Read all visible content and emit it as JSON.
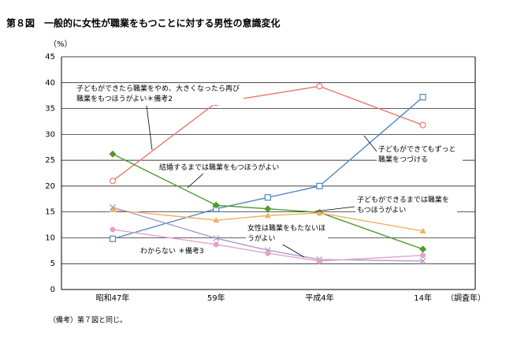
{
  "chart_data": {
    "type": "line",
    "title": "第８図　一般的に女性が職業をもつことに対する男性の意識変化",
    "y_label": "（%）",
    "x_label": "（調査年）",
    "note": "（備考）第７図と同じ。",
    "categories": [
      "昭和47年",
      null,
      "59年",
      null,
      "平成4年",
      null,
      "14年"
    ],
    "ylim": [
      0,
      45
    ],
    "yticks": [
      0,
      5,
      10,
      15,
      20,
      25,
      30,
      35,
      40,
      45
    ],
    "grid": true,
    "series": [
      {
        "name": "子どもができたら職業をやめ、大きくなったら再び職業をもつほうがよい＊備考2",
        "color": "#e8786e",
        "marker": "circle-open",
        "values": [
          21.0,
          null,
          36.1,
          null,
          39.3,
          null,
          31.8
        ]
      },
      {
        "name": "子どもができてもずっと職業をつづける",
        "color": "#4f86c6",
        "marker": "square-open",
        "values": [
          9.8,
          null,
          15.6,
          17.8,
          20.0,
          null,
          37.2
        ]
      },
      {
        "name": "結婚するまでは職業をもつほうがよい",
        "color": "#4e9a2a",
        "marker": "diamond",
        "values": [
          26.2,
          null,
          16.3,
          15.6,
          14.9,
          null,
          7.8
        ]
      },
      {
        "name": "子どもができるまでは職業をもつほうがよい",
        "color": "#f0b060",
        "marker": "triangle",
        "values": [
          15.4,
          null,
          13.4,
          14.3,
          14.8,
          null,
          11.3
        ]
      },
      {
        "name": "女性は職業をもたないほうがよい",
        "color": "#a89ccc",
        "marker": "cross",
        "values": [
          15.9,
          null,
          9.9,
          7.6,
          5.8,
          null,
          5.5
        ]
      },
      {
        "name": "わからない ＊備考3",
        "color": "#e7a0c8",
        "marker": "circle",
        "values": [
          11.6,
          null,
          8.7,
          7.0,
          5.5,
          null,
          6.6
        ]
      }
    ]
  }
}
